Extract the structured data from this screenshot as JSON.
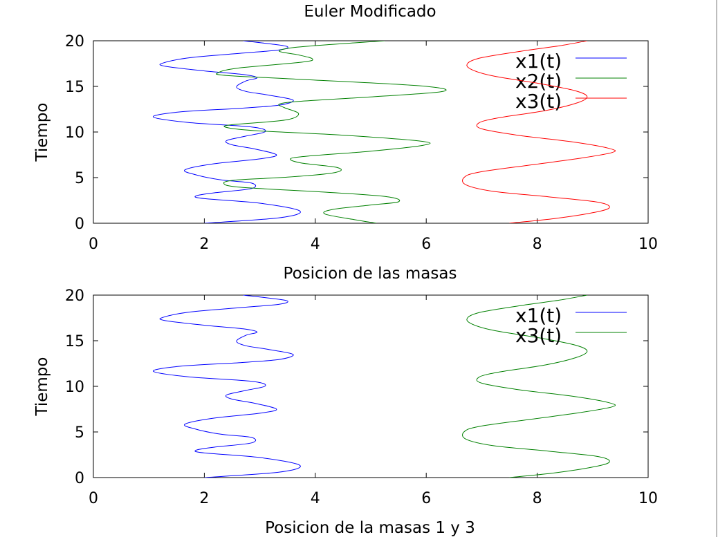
{
  "colors": {
    "x1": "#0000ff",
    "x2": "#008000",
    "x3": "#ff0000",
    "green": "#008000",
    "frame": "#000000"
  },
  "chart_data": [
    {
      "type": "line",
      "title": "Euler Modificado",
      "xlabel": "Posicion de las masas",
      "ylabel": "Tiempo",
      "xlim": [
        0,
        10
      ],
      "ylim": [
        0,
        20
      ],
      "xticks": [
        "0",
        "2",
        "4",
        "6",
        "8",
        "10"
      ],
      "yticks": [
        "0",
        "5",
        "10",
        "15",
        "20"
      ],
      "legend": "top-right",
      "series": [
        {
          "name": "x1(t)",
          "color": "#0000ff",
          "points": [
            [
              2.0,
              0
            ],
            [
              3.35,
              0.6
            ],
            [
              3.72,
              1.35
            ],
            [
              3.0,
              2.2
            ],
            [
              2.0,
              2.7
            ],
            [
              1.85,
              3.0
            ],
            [
              2.2,
              3.35
            ],
            [
              2.85,
              3.8
            ],
            [
              2.85,
              4.4
            ],
            [
              2.3,
              4.75
            ],
            [
              1.85,
              5.3
            ],
            [
              1.65,
              5.85
            ],
            [
              2.15,
              6.5
            ],
            [
              3.0,
              7.05
            ],
            [
              3.3,
              7.5
            ],
            [
              2.9,
              8.15
            ],
            [
              2.5,
              8.6
            ],
            [
              2.4,
              9.05
            ],
            [
              2.75,
              9.55
            ],
            [
              3.1,
              10.05
            ],
            [
              2.85,
              10.55
            ],
            [
              1.7,
              11.05
            ],
            [
              1.08,
              11.65
            ],
            [
              1.55,
              12.2
            ],
            [
              2.65,
              12.6
            ],
            [
              3.35,
              12.95
            ],
            [
              3.6,
              13.5
            ],
            [
              3.15,
              14.05
            ],
            [
              2.75,
              14.45
            ],
            [
              2.58,
              14.95
            ],
            [
              2.75,
              15.6
            ],
            [
              2.95,
              15.95
            ],
            [
              2.7,
              16.3
            ],
            [
              2.0,
              16.7
            ],
            [
              1.3,
              17.2
            ],
            [
              1.25,
              17.55
            ],
            [
              1.75,
              18.15
            ],
            [
              2.7,
              18.65
            ],
            [
              3.35,
              19.0
            ],
            [
              3.5,
              19.35
            ],
            [
              3.2,
              19.65
            ],
            [
              2.7,
              20.0
            ]
          ]
        },
        {
          "name": "x2(t)",
          "color": "#008000",
          "points": [
            [
              5.1,
              0
            ],
            [
              4.7,
              0.4
            ],
            [
              4.18,
              1.0
            ],
            [
              4.3,
              1.5
            ],
            [
              5.0,
              2.0
            ],
            [
              5.5,
              2.35
            ],
            [
              5.3,
              2.9
            ],
            [
              4.2,
              3.4
            ],
            [
              2.65,
              3.95
            ],
            [
              2.35,
              4.4
            ],
            [
              2.6,
              4.75
            ],
            [
              3.5,
              5.05
            ],
            [
              4.35,
              5.55
            ],
            [
              4.4,
              6.1
            ],
            [
              3.75,
              6.6
            ],
            [
              3.55,
              7.05
            ],
            [
              3.85,
              7.35
            ],
            [
              5.0,
              7.9
            ],
            [
              5.95,
              8.55
            ],
            [
              5.9,
              9.0
            ],
            [
              4.5,
              9.65
            ],
            [
              2.9,
              10.15
            ],
            [
              2.4,
              10.5
            ],
            [
              2.5,
              10.8
            ],
            [
              3.45,
              11.3
            ],
            [
              3.7,
              12.0
            ],
            [
              3.45,
              12.65
            ],
            [
              3.35,
              13.05
            ],
            [
              3.7,
              13.35
            ],
            [
              5.0,
              13.85
            ],
            [
              6.3,
              14.45
            ],
            [
              5.9,
              15.05
            ],
            [
              3.8,
              15.75
            ],
            [
              2.4,
              16.2
            ],
            [
              2.25,
              16.5
            ],
            [
              2.6,
              17.0
            ],
            [
              3.75,
              17.65
            ],
            [
              3.95,
              18.0
            ],
            [
              3.7,
              18.45
            ],
            [
              3.35,
              18.85
            ],
            [
              3.6,
              19.25
            ],
            [
              4.3,
              19.6
            ],
            [
              5.25,
              20.0
            ]
          ]
        },
        {
          "name": "x3(t)",
          "color": "#ff0000",
          "points": [
            [
              7.5,
              0
            ],
            [
              8.3,
              0.5
            ],
            [
              9.0,
              1.15
            ],
            [
              9.3,
              1.7
            ],
            [
              9.1,
              2.3
            ],
            [
              8.2,
              2.9
            ],
            [
              7.2,
              3.5
            ],
            [
              6.72,
              4.2
            ],
            [
              6.68,
              5.0
            ],
            [
              6.95,
              5.6
            ],
            [
              7.9,
              6.4
            ],
            [
              8.75,
              7.1
            ],
            [
              9.35,
              7.75
            ],
            [
              9.3,
              8.2
            ],
            [
              8.6,
              8.95
            ],
            [
              7.7,
              9.6
            ],
            [
              7.0,
              10.35
            ],
            [
              6.95,
              11.0
            ],
            [
              7.3,
              11.55
            ],
            [
              8.15,
              12.35
            ],
            [
              8.7,
              13.15
            ],
            [
              8.9,
              13.85
            ],
            [
              8.7,
              14.5
            ],
            [
              8.1,
              15.25
            ],
            [
              7.2,
              16.15
            ],
            [
              6.8,
              16.9
            ],
            [
              6.75,
              17.55
            ],
            [
              7.0,
              18.15
            ],
            [
              7.7,
              18.85
            ],
            [
              8.4,
              19.45
            ],
            [
              8.9,
              20.0
            ]
          ]
        }
      ]
    },
    {
      "type": "line",
      "title": "",
      "xlabel": "Posicion de la masas 1 y 3",
      "ylabel": "Tiempo",
      "xlim": [
        0,
        10
      ],
      "ylim": [
        0,
        20
      ],
      "xticks": [
        "0",
        "2",
        "4",
        "6",
        "8",
        "10"
      ],
      "yticks": [
        "0",
        "5",
        "10",
        "15",
        "20"
      ],
      "legend": "top-right",
      "series": [
        {
          "name": "x1(t)",
          "color": "#0000ff",
          "points": [
            [
              2.0,
              0
            ],
            [
              3.35,
              0.6
            ],
            [
              3.72,
              1.35
            ],
            [
              3.0,
              2.2
            ],
            [
              2.0,
              2.7
            ],
            [
              1.85,
              3.0
            ],
            [
              2.2,
              3.35
            ],
            [
              2.85,
              3.8
            ],
            [
              2.85,
              4.4
            ],
            [
              2.3,
              4.75
            ],
            [
              1.85,
              5.3
            ],
            [
              1.65,
              5.85
            ],
            [
              2.15,
              6.5
            ],
            [
              3.0,
              7.05
            ],
            [
              3.3,
              7.5
            ],
            [
              2.9,
              8.15
            ],
            [
              2.5,
              8.6
            ],
            [
              2.4,
              9.05
            ],
            [
              2.75,
              9.55
            ],
            [
              3.1,
              10.05
            ],
            [
              2.85,
              10.55
            ],
            [
              1.7,
              11.05
            ],
            [
              1.08,
              11.65
            ],
            [
              1.55,
              12.2
            ],
            [
              2.65,
              12.6
            ],
            [
              3.35,
              12.95
            ],
            [
              3.6,
              13.5
            ],
            [
              3.15,
              14.05
            ],
            [
              2.75,
              14.45
            ],
            [
              2.58,
              14.95
            ],
            [
              2.75,
              15.6
            ],
            [
              2.95,
              15.95
            ],
            [
              2.7,
              16.3
            ],
            [
              2.0,
              16.7
            ],
            [
              1.3,
              17.2
            ],
            [
              1.25,
              17.55
            ],
            [
              1.75,
              18.15
            ],
            [
              2.7,
              18.65
            ],
            [
              3.35,
              19.0
            ],
            [
              3.5,
              19.35
            ],
            [
              3.2,
              19.65
            ],
            [
              2.7,
              20.0
            ]
          ]
        },
        {
          "name": "x3(t)",
          "color": "#008000",
          "points": [
            [
              7.5,
              0
            ],
            [
              8.3,
              0.5
            ],
            [
              9.0,
              1.15
            ],
            [
              9.3,
              1.7
            ],
            [
              9.1,
              2.3
            ],
            [
              8.2,
              2.9
            ],
            [
              7.2,
              3.5
            ],
            [
              6.72,
              4.2
            ],
            [
              6.68,
              5.0
            ],
            [
              6.95,
              5.6
            ],
            [
              7.9,
              6.4
            ],
            [
              8.75,
              7.1
            ],
            [
              9.35,
              7.75
            ],
            [
              9.3,
              8.2
            ],
            [
              8.6,
              8.95
            ],
            [
              7.7,
              9.6
            ],
            [
              7.0,
              10.35
            ],
            [
              6.95,
              11.0
            ],
            [
              7.3,
              11.55
            ],
            [
              8.15,
              12.35
            ],
            [
              8.7,
              13.15
            ],
            [
              8.9,
              13.85
            ],
            [
              8.7,
              14.5
            ],
            [
              8.1,
              15.25
            ],
            [
              7.2,
              16.15
            ],
            [
              6.8,
              16.9
            ],
            [
              6.75,
              17.55
            ],
            [
              7.0,
              18.15
            ],
            [
              7.7,
              18.85
            ],
            [
              8.4,
              19.45
            ],
            [
              8.9,
              20.0
            ]
          ]
        }
      ]
    }
  ]
}
